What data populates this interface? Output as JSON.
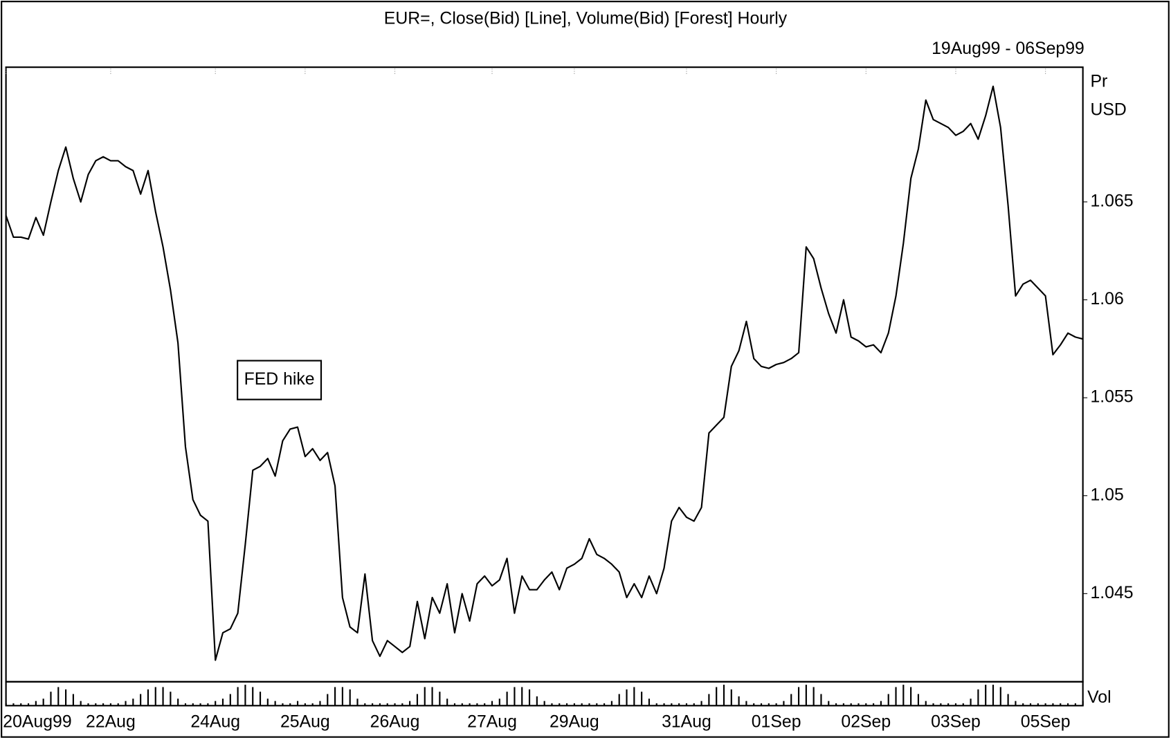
{
  "chart_data": {
    "type": "line",
    "title": "EUR=, Close(Bid) [Line], Volume(Bid) [Forest] Hourly",
    "subtitle": "19Aug99 - 06Sep99",
    "y_label_lines": [
      "Pr",
      "USD"
    ],
    "volume_label": "Vol",
    "annotation": "FED hike",
    "color": "#000000",
    "grid": false,
    "xlim": [
      0,
      144
    ],
    "xticks": [
      {
        "value": 0,
        "label": "20Aug99"
      },
      {
        "value": 14,
        "label": "22Aug"
      },
      {
        "value": 28,
        "label": "24Aug"
      },
      {
        "value": 40,
        "label": "25Aug"
      },
      {
        "value": 52,
        "label": "26Aug"
      },
      {
        "value": 65,
        "label": "27Aug"
      },
      {
        "value": 76,
        "label": "29Aug"
      },
      {
        "value": 91,
        "label": "31Aug"
      },
      {
        "value": 103,
        "label": "01Sep"
      },
      {
        "value": 115,
        "label": "02Sep"
      },
      {
        "value": 127,
        "label": "03Sep"
      },
      {
        "value": 139,
        "label": "05Sep"
      }
    ],
    "ylim": [
      1.0405,
      1.0718
    ],
    "yticks": [
      1.045,
      1.05,
      1.055,
      1.06,
      1.065
    ],
    "values": [
      1.0643,
      1.0632,
      1.0632,
      1.0631,
      1.0642,
      1.0633,
      1.065,
      1.0666,
      1.0678,
      1.0662,
      1.065,
      1.0664,
      1.0671,
      1.0673,
      1.0671,
      1.0671,
      1.0668,
      1.0666,
      1.0654,
      1.0666,
      1.0645,
      1.0627,
      1.0605,
      1.0578,
      1.0525,
      1.0498,
      1.049,
      1.0487,
      1.0416,
      1.043,
      1.0432,
      1.044,
      1.0475,
      1.0513,
      1.0515,
      1.0519,
      1.051,
      1.0528,
      1.0534,
      1.0535,
      1.052,
      1.0524,
      1.0518,
      1.0522,
      1.0505,
      1.0448,
      1.0433,
      1.043,
      1.046,
      1.0426,
      1.0418,
      1.0426,
      1.0423,
      1.042,
      1.0423,
      1.0446,
      1.0427,
      1.0448,
      1.044,
      1.0455,
      1.043,
      1.045,
      1.0436,
      1.0455,
      1.0459,
      1.0454,
      1.0457,
      1.0468,
      1.044,
      1.0459,
      1.0452,
      1.0452,
      1.0457,
      1.0461,
      1.0452,
      1.0463,
      1.0465,
      1.0468,
      1.0478,
      1.047,
      1.0468,
      1.0465,
      1.0461,
      1.0448,
      1.0455,
      1.0448,
      1.0459,
      1.045,
      1.0463,
      1.0487,
      1.0494,
      1.0489,
      1.0487,
      1.0494,
      1.0532,
      1.0536,
      1.054,
      1.0566,
      1.0574,
      1.0589,
      1.057,
      1.0566,
      1.0565,
      1.0567,
      1.0568,
      1.057,
      1.0573,
      1.0627,
      1.0621,
      1.0606,
      1.0593,
      1.0583,
      1.06,
      1.0581,
      1.0579,
      1.0576,
      1.0577,
      1.0573,
      1.0583,
      1.0602,
      1.0629,
      1.0662,
      1.0677,
      1.0702,
      1.0692,
      1.069,
      1.0688,
      1.0684,
      1.0686,
      1.069,
      1.0682,
      1.0694,
      1.0709,
      1.0688,
      1.0648,
      1.0602,
      1.0608,
      1.061,
      1.0606,
      1.0602,
      1.0572,
      1.0577,
      1.0583,
      1.0581,
      1.058
    ],
    "volume": [
      1,
      1,
      1,
      1,
      2,
      3,
      6,
      8,
      7,
      5,
      2,
      1,
      1,
      1,
      1,
      1,
      2,
      3,
      5,
      7,
      8,
      8,
      6,
      3,
      1,
      1,
      1,
      1,
      2,
      3,
      5,
      8,
      9,
      8,
      6,
      3,
      2,
      1,
      1,
      2,
      1,
      1,
      2,
      5,
      8,
      8,
      7,
      3,
      1,
      1,
      1,
      1,
      1,
      1,
      2,
      5,
      8,
      8,
      6,
      3,
      1,
      1,
      1,
      1,
      1,
      2,
      3,
      6,
      8,
      8,
      7,
      4,
      2,
      1,
      1,
      1,
      1,
      1,
      1,
      1,
      1,
      2,
      5,
      7,
      8,
      6,
      3,
      1,
      1,
      1,
      1,
      1,
      1,
      2,
      5,
      8,
      9,
      7,
      4,
      2,
      1,
      1,
      1,
      1,
      2,
      5,
      8,
      9,
      8,
      5,
      2,
      1,
      1,
      1,
      1,
      1,
      1,
      2,
      5,
      8,
      9,
      8,
      5,
      2,
      1,
      1,
      1,
      1,
      1,
      3,
      7,
      9,
      9,
      8,
      5,
      2,
      1,
      1,
      1,
      1,
      1,
      1,
      1,
      1,
      2
    ]
  }
}
